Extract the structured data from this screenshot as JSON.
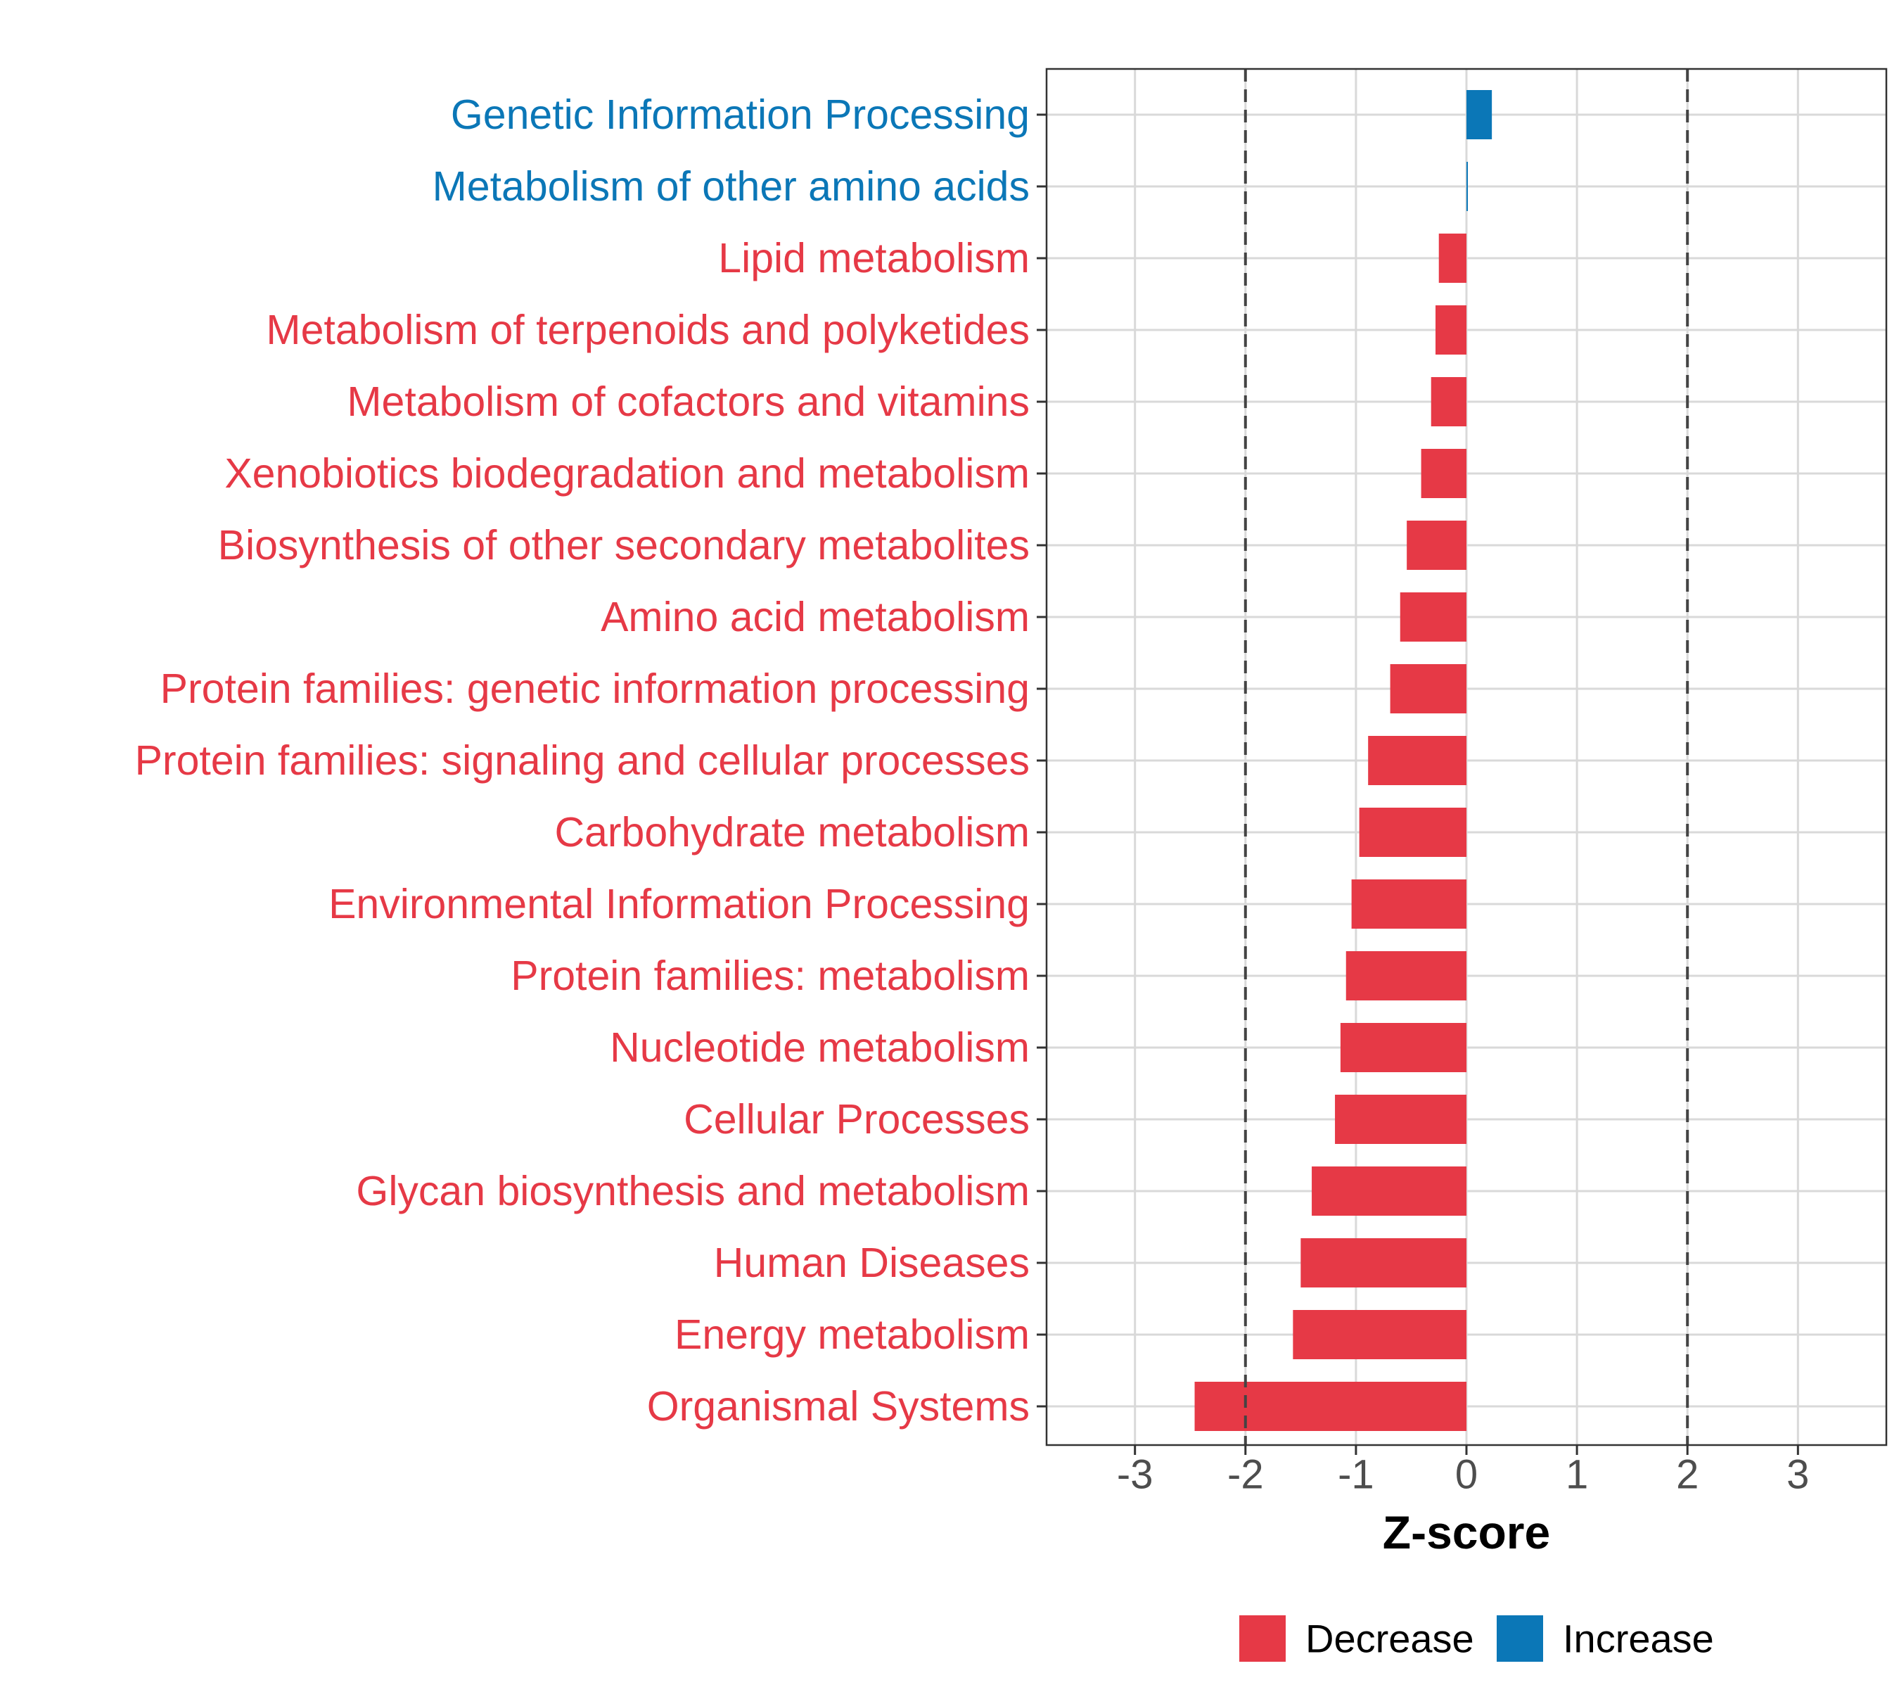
{
  "colors": {
    "decrease": "#E63946",
    "increase": "#0B77B7",
    "grid": "#D9D9D9",
    "axis_text": "#4D4D4D",
    "refline": "#444444"
  },
  "chart_data": {
    "type": "bar",
    "orientation": "horizontal",
    "xlabel": "Z-score",
    "xlim": [
      -3.8,
      3.8
    ],
    "xticks": [
      -3,
      -2,
      -1,
      0,
      1,
      2,
      3
    ],
    "xtick_labels": [
      "-3",
      "-2",
      "-1",
      "0",
      "1",
      "2",
      "3"
    ],
    "reference_lines": [
      -2,
      2
    ],
    "grid": true,
    "legend_position": "bottom",
    "legend": [
      {
        "label": "Decrease",
        "color": "#E63946"
      },
      {
        "label": "Increase",
        "color": "#0B77B7"
      }
    ],
    "bars": [
      {
        "category": "Genetic Information Processing",
        "value": 0.23,
        "direction": "Increase"
      },
      {
        "category": "Metabolism of other amino acids",
        "value": 0.01,
        "direction": "Increase"
      },
      {
        "category": "Lipid metabolism",
        "value": -0.25,
        "direction": "Decrease"
      },
      {
        "category": "Metabolism of terpenoids and polyketides",
        "value": -0.28,
        "direction": "Decrease"
      },
      {
        "category": "Metabolism of cofactors and vitamins",
        "value": -0.32,
        "direction": "Decrease"
      },
      {
        "category": "Xenobiotics biodegradation and metabolism",
        "value": -0.41,
        "direction": "Decrease"
      },
      {
        "category": "Biosynthesis of other secondary metabolites",
        "value": -0.54,
        "direction": "Decrease"
      },
      {
        "category": "Amino acid metabolism",
        "value": -0.6,
        "direction": "Decrease"
      },
      {
        "category": "Protein families: genetic information processing",
        "value": -0.69,
        "direction": "Decrease"
      },
      {
        "category": "Protein families: signaling and cellular processes",
        "value": -0.89,
        "direction": "Decrease"
      },
      {
        "category": "Carbohydrate metabolism",
        "value": -0.97,
        "direction": "Decrease"
      },
      {
        "category": "Environmental Information Processing",
        "value": -1.04,
        "direction": "Decrease"
      },
      {
        "category": "Protein families: metabolism",
        "value": -1.09,
        "direction": "Decrease"
      },
      {
        "category": "Nucleotide metabolism",
        "value": -1.14,
        "direction": "Decrease"
      },
      {
        "category": "Cellular Processes",
        "value": -1.19,
        "direction": "Decrease"
      },
      {
        "category": "Glycan biosynthesis and metabolism",
        "value": -1.4,
        "direction": "Decrease"
      },
      {
        "category": "Human Diseases",
        "value": -1.5,
        "direction": "Decrease"
      },
      {
        "category": "Energy metabolism",
        "value": -1.57,
        "direction": "Decrease"
      },
      {
        "category": "Organismal Systems",
        "value": -2.46,
        "direction": "Decrease"
      }
    ]
  }
}
